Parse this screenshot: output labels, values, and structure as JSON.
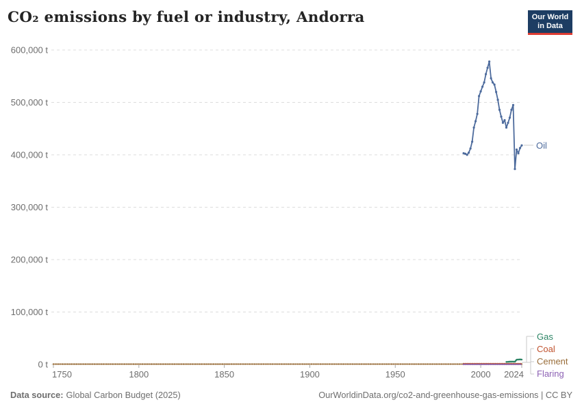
{
  "header": {
    "title": "CO₂ emissions by fuel or industry, Andorra",
    "logo": {
      "line1": "Our World",
      "line2": "in Data"
    }
  },
  "footer": {
    "source_label": "Data source:",
    "source_value": "Global Carbon Budget (2025)",
    "credit": "OurWorldinData.org/co2-and-greenhouse-gas-emissions | CC BY"
  },
  "colors": {
    "logo_bg": "#1D3D63",
    "logo_accent": "#DE3C32",
    "grid": "#DCDCDC",
    "axis_tick": "#A8A8A8",
    "tick_text": "#6D6D6D",
    "connector": "#C9C9C9",
    "title_text": "#242424",
    "footer_text": "#6E6E6E"
  },
  "chart_data": {
    "type": "line",
    "title": "CO₂ emissions by fuel or industry, Andorra",
    "unit": "t (tonnes)",
    "xlim": [
      1750,
      2024
    ],
    "ylim": [
      0,
      600000
    ],
    "grid": true,
    "legend_position": "line-end-labels-right",
    "xticks": [
      1750,
      1800,
      1850,
      1900,
      1950,
      2000,
      2024
    ],
    "yticks": [
      0,
      100000,
      200000,
      300000,
      400000,
      500000,
      600000
    ],
    "ytick_labels": [
      "0 t",
      "100,000 t",
      "200,000 t",
      "300,000 t",
      "400,000 t",
      "500,000 t",
      "600,000 t"
    ],
    "series": [
      {
        "name": "Oil",
        "color": "#4C6A9C",
        "markers": true,
        "dotted": false,
        "x": [
          1990,
          1991,
          1992,
          1993,
          1994,
          1995,
          1996,
          1997,
          1998,
          1999,
          2000,
          2001,
          2002,
          2003,
          2004,
          2005,
          2006,
          2007,
          2008,
          2009,
          2010,
          2011,
          2012,
          2013,
          2014,
          2015,
          2016,
          2017,
          2018,
          2019,
          2020,
          2021,
          2022,
          2023,
          2024
        ],
        "y": [
          403000,
          402000,
          400000,
          404000,
          412000,
          425000,
          452000,
          464000,
          478000,
          512000,
          521000,
          530000,
          538000,
          554000,
          566000,
          578000,
          546000,
          538000,
          534000,
          520000,
          505000,
          486000,
          473000,
          461000,
          466000,
          452000,
          461000,
          471000,
          486000,
          495000,
          373000,
          410000,
          403000,
          413000,
          418000
        ]
      },
      {
        "name": "Gas",
        "color": "#2C8465",
        "markers": false,
        "dotted": false,
        "x": [
          2015,
          2016,
          2017,
          2018,
          2019,
          2020,
          2021,
          2022,
          2023,
          2024
        ],
        "y": [
          4800,
          5000,
          5200,
          5400,
          5300,
          5100,
          9000,
          9300,
          9500,
          9300
        ]
      },
      {
        "name": "Coal",
        "color": "#C0522E",
        "markers": false,
        "dotted": true,
        "x": [
          1990,
          2024
        ],
        "y": [
          1500,
          1500
        ]
      },
      {
        "name": "Cement",
        "color": "#996D39",
        "markers": false,
        "dotted": true,
        "x": [
          1750,
          2024
        ],
        "y": [
          500,
          700
        ]
      },
      {
        "name": "Flaring",
        "color": "#8C61B4",
        "markers": false,
        "dotted": true,
        "x": [
          1990,
          2024
        ],
        "y": [
          100,
          100
        ]
      }
    ]
  }
}
